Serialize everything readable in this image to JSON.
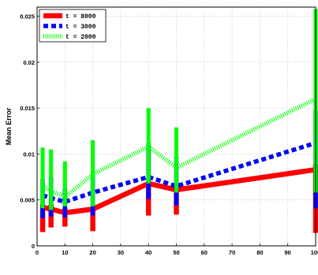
{
  "chart_data": {
    "type": "line",
    "title": "",
    "xlabel": "",
    "ylabel": "Mean Error",
    "xlim": [
      0,
      100
    ],
    "ylim": [
      0,
      0.026
    ],
    "x_ticks": [
      0,
      10,
      20,
      30,
      40,
      50,
      60,
      70,
      80,
      90,
      100
    ],
    "x_tick_labels": [
      "0",
      "10",
      "20",
      "30",
      "40",
      "50",
      "60",
      "70",
      "80",
      "90",
      "100"
    ],
    "y_ticks": [
      0,
      0.005,
      0.01,
      0.015,
      0.02,
      0.025
    ],
    "y_tick_labels": [
      "0",
      "0.005",
      "0.01",
      "0.015",
      "0.02",
      "0.025"
    ],
    "grid": true,
    "legend_position": "top-left",
    "x": [
      2,
      5,
      10,
      20,
      40,
      50,
      100
    ],
    "series": [
      {
        "name": "t = 8000",
        "color": "#ff0000",
        "line_style": "solid",
        "values": [
          0.0042,
          0.004,
          0.0036,
          0.004,
          0.0068,
          0.0061,
          0.0083
        ],
        "error_low": [
          0.0015,
          0.002,
          0.0021,
          0.0016,
          0.0033,
          0.0034,
          0.0014
        ],
        "error_high": [
          0.0045,
          0.0045,
          0.0041,
          0.0041,
          0.007,
          0.0066,
          0.0089
        ]
      },
      {
        "name": "t = 3000",
        "color": "#0000ff",
        "line_style": "dashed",
        "values": [
          0.0055,
          0.0052,
          0.0048,
          0.0058,
          0.0075,
          0.0065,
          0.0112
        ],
        "error_low": [
          0.003,
          0.0032,
          0.0031,
          0.0033,
          0.0051,
          0.0044,
          0.0041
        ],
        "error_high": [
          0.0073,
          0.0075,
          0.0063,
          0.0077,
          0.0112,
          0.0097,
          0.0148
        ]
      },
      {
        "name": "t = 2000",
        "color": "#00ff00",
        "line_style": "dotted",
        "values": [
          0.0065,
          0.006,
          0.0053,
          0.0078,
          0.0108,
          0.0085,
          0.016
        ],
        "error_low": [
          0.0041,
          0.0039,
          0.0043,
          0.0043,
          0.0068,
          0.0058,
          0.0058
        ],
        "error_high": [
          0.0107,
          0.0105,
          0.0092,
          0.0115,
          0.015,
          0.0129,
          0.0258
        ]
      }
    ]
  }
}
